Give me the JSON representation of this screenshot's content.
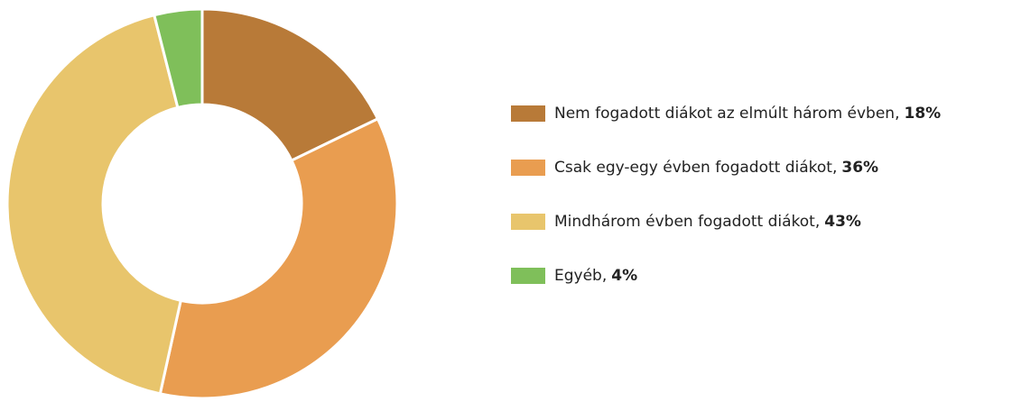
{
  "chart_data": {
    "type": "donut",
    "categories": [
      "Nem fogadott diákot az elmúlt három évben,",
      "Csak egy-egy évben fogadott diákot,",
      "Mindhárom évben fogadott diákot,",
      "Egyéb,"
    ],
    "values": [
      18,
      36,
      43,
      4
    ],
    "value_labels": [
      "18%",
      "36%",
      "43%",
      "4%"
    ],
    "colors": [
      "#b87a38",
      "#e99d50",
      "#e8c56c",
      "#7fbf5a"
    ],
    "legend": "right"
  }
}
